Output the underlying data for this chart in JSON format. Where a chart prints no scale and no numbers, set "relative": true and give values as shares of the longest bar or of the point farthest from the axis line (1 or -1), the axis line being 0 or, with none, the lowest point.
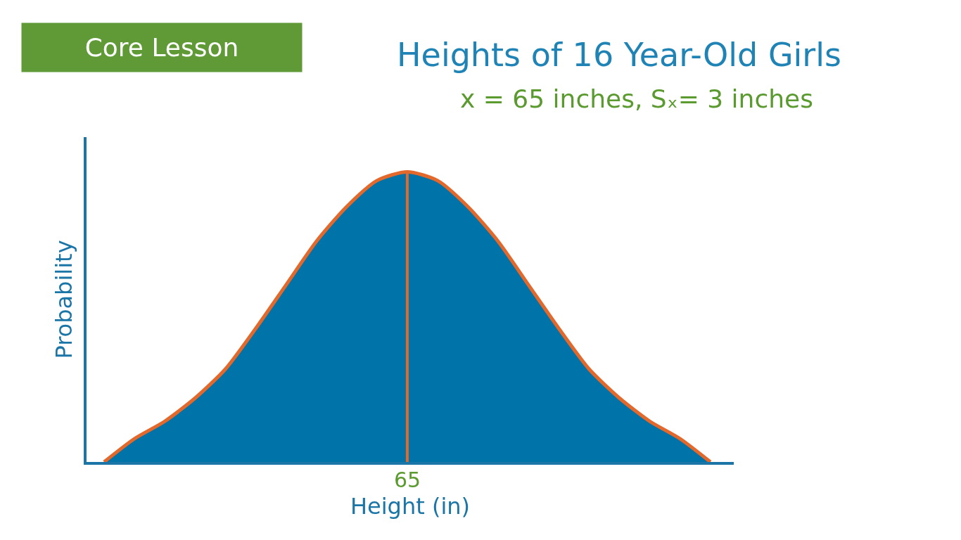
{
  "chart_data": {
    "type": "area",
    "title": "Heights of 16 Year-Old Girls",
    "subtitle": "x = 65 inches, Sₓ= 3 inches",
    "xlabel": "Height (in)",
    "ylabel": "Probability",
    "relative": true,
    "categories": [
      null,
      null,
      null,
      null,
      null,
      null,
      null,
      null,
      null,
      null,
      null,
      null,
      null,
      null,
      null,
      null,
      null,
      null,
      null,
      null,
      null
    ],
    "series": [
      {
        "color": "#0073a9",
        "values": [
          0,
          0.08,
          0.14,
          0.22,
          0.32,
          0.46,
          0.61,
          0.76,
          0.88,
          0.97,
          1,
          0.97,
          0.88,
          0.76,
          0.61,
          0.46,
          0.32,
          0.22,
          0.14,
          0.08,
          0
        ]
      }
    ],
    "ref_lines": [
      {
        "axis": "x",
        "label": "65",
        "color": "#e2692b"
      }
    ],
    "annotations": [
      "Core Lesson"
    ],
    "tick_labels": "x",
    "marker": "none"
  }
}
